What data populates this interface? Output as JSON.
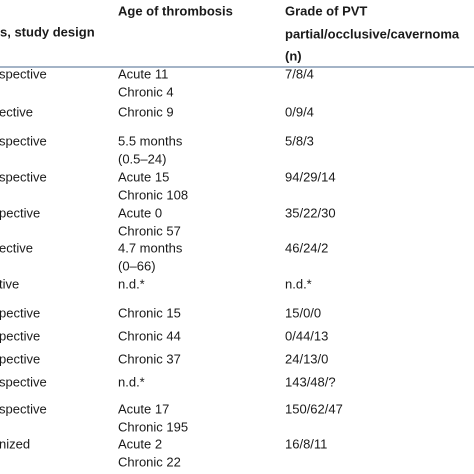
{
  "header": {
    "design": "s, study design",
    "age": "Age of thrombosis",
    "grade": [
      "Grade of PVT",
      "partial/occlusive/cavernoma",
      "(n)"
    ]
  },
  "rows": [
    {
      "design": "spective",
      "age": [
        "Acute 11",
        "Chronic 4"
      ],
      "grade": "7/8/4"
    },
    {
      "design": "ective",
      "age": [
        "Chronic 9"
      ],
      "grade": "0/9/4"
    },
    {
      "design": "spective",
      "age": [
        "5.5 months",
        "(0.5–24)"
      ],
      "grade": "5/8/3"
    },
    {
      "design": "spective",
      "age": [
        "Acute 15",
        "Chronic 108"
      ],
      "grade": "94/29/14"
    },
    {
      "design": "pective",
      "age": [
        "Acute 0",
        "Chronic 57"
      ],
      "grade": "35/22/30"
    },
    {
      "design": "ective",
      "age": [
        "4.7 months",
        "(0–66)"
      ],
      "grade": "46/24/2"
    },
    {
      "design": "tive",
      "age": [
        "n.d.*"
      ],
      "grade": "n.d.*"
    },
    {
      "design": "pective",
      "age": [
        "Chronic 15"
      ],
      "grade": "15/0/0"
    },
    {
      "design": "pective",
      "age": [
        "Chronic 44"
      ],
      "grade": "0/44/13"
    },
    {
      "design": "pective",
      "age": [
        "Chronic 37"
      ],
      "grade": "24/13/0"
    },
    {
      "design": "spective",
      "age": [
        "n.d.*"
      ],
      "grade": "143/48/?"
    },
    {
      "design": "spective",
      "age": [
        "Acute 17",
        "Chronic 195"
      ],
      "grade": "150/62/47"
    },
    {
      "design": "nized",
      "age": [
        "Acute 2",
        "Chronic 22"
      ],
      "grade": "16/8/11"
    }
  ]
}
